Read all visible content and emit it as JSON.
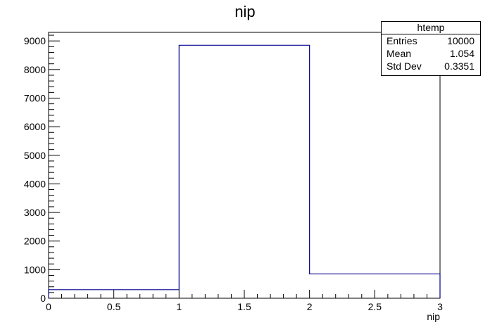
{
  "chart_data": {
    "type": "histogram",
    "title": "nip",
    "xlabel": "nip",
    "ylabel": "",
    "bins": [
      {
        "x_low": 0,
        "x_high": 1,
        "count": 300
      },
      {
        "x_low": 1,
        "x_high": 2,
        "count": 8850
      },
      {
        "x_low": 2,
        "x_high": 3,
        "count": 850
      }
    ],
    "xlim": [
      0,
      3
    ],
    "ylim": [
      0,
      9300
    ],
    "x_ticks": [
      "0",
      "0.5",
      "1",
      "1.5",
      "2",
      "2.5",
      "3"
    ],
    "y_ticks": [
      "0",
      "1000",
      "2000",
      "3000",
      "4000",
      "5000",
      "6000",
      "7000",
      "8000",
      "9000"
    ],
    "line_color": "#00008b",
    "grid": false,
    "legend": "none"
  },
  "stats": {
    "title": "htemp",
    "rows": [
      {
        "label": "Entries",
        "value": "10000"
      },
      {
        "label": "Mean",
        "value": "1.054"
      },
      {
        "label": "Std Dev",
        "value": "0.3351"
      }
    ]
  }
}
